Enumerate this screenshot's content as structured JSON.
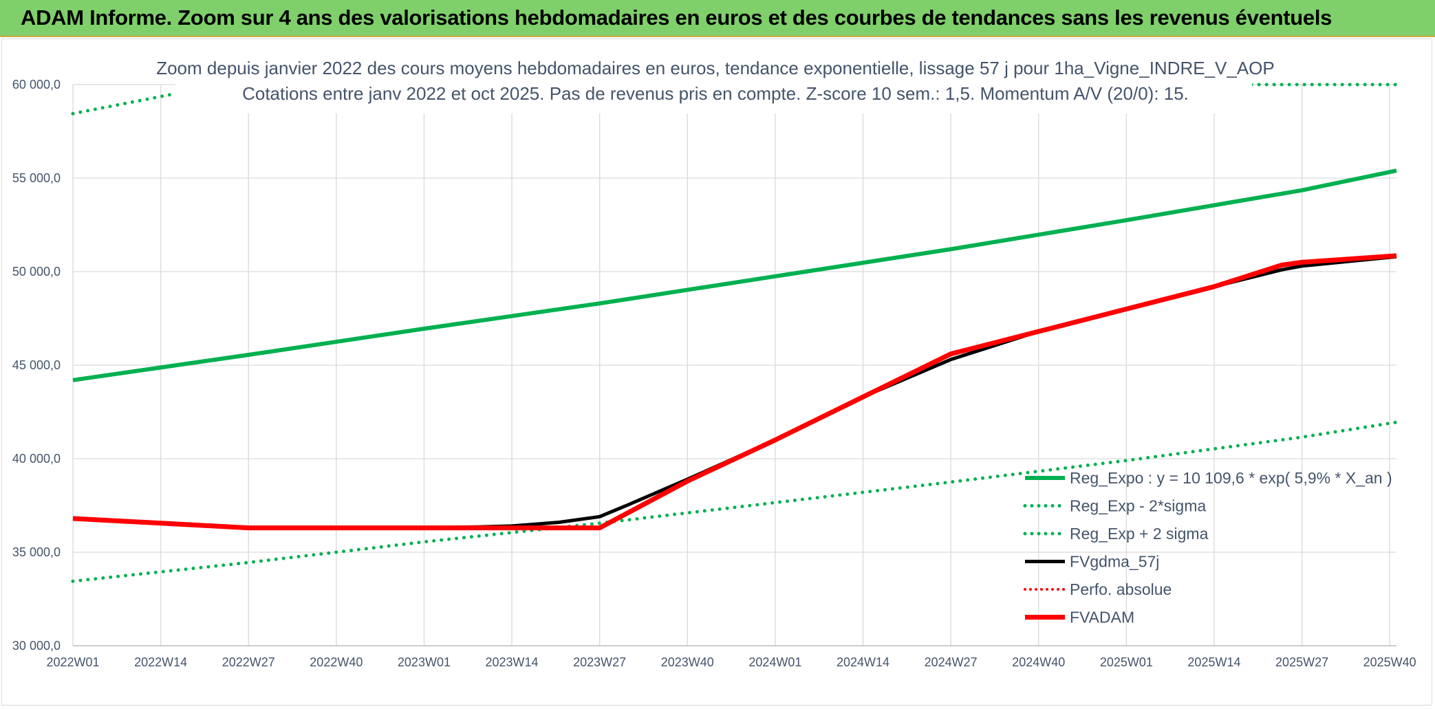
{
  "banner": {
    "title": "ADAM Informe. Zoom sur 4 ans des valorisations hebdomadaires en euros et des courbes de tendances sans les revenus éventuels"
  },
  "colors": {
    "banner_bg": "#7fcf6b",
    "green": "#00b050",
    "black": "#000000",
    "red": "#ff0000",
    "grid": "#d9d9d9",
    "text": "#44546a"
  },
  "chart_data": {
    "type": "line",
    "title_lines": [
      "Zoom depuis janvier 2022 des cours moyens hebdomadaires en euros, tendance exponentielle, lissage 57 j pour 1ha_Vigne_INDRE_V_AOP",
      "Cotations entre janv 2022 et oct 2025. Pas de revenus pris en compte. Z-score 10 sem.: 1,5. Momentum A/V (20/0): 15."
    ],
    "ylim": [
      30000,
      60000
    ],
    "yticks": [
      30000,
      35000,
      40000,
      45000,
      50000,
      55000,
      60000
    ],
    "ytick_labels": [
      "30 000,0",
      "35 000,0",
      "40 000,0",
      "45 000,0",
      "50 000,0",
      "55 000,0",
      "60 000,0"
    ],
    "x_range_weeks": [
      0,
      196
    ],
    "xtick_positions": [
      0,
      13,
      26,
      39,
      52,
      65,
      78,
      91,
      104,
      117,
      130,
      143,
      156,
      169,
      182,
      195
    ],
    "xtick_labels": [
      "2022W01",
      "2022W14",
      "2022W27",
      "2022W40",
      "2023W01",
      "2023W14",
      "2023W27",
      "2023W40",
      "2024W01",
      "2024W14",
      "2024W27",
      "2024W40",
      "2025W01",
      "2025W14",
      "2025W27",
      "2025W40"
    ],
    "series": [
      {
        "name": "Reg_Expo : y = 10 109,6 * exp( 5,9% *  X_an )",
        "style": "solid-green-thick",
        "x": [
          0,
          26,
          52,
          78,
          104,
          130,
          156,
          182,
          196
        ],
        "y": [
          44200,
          45550,
          46950,
          48300,
          49750,
          51200,
          52750,
          54350,
          55400
        ]
      },
      {
        "name": "Reg_Exp - 2*sigma",
        "style": "dotted-green",
        "x": [
          0,
          26,
          52,
          78,
          104,
          130,
          156,
          182,
          196
        ],
        "y": [
          33450,
          34450,
          35550,
          36550,
          37650,
          38750,
          39900,
          41150,
          41950
        ]
      },
      {
        "name": "Reg_Exp + 2 sigma",
        "style": "dotted-green",
        "x": [
          0,
          15,
          175,
          196
        ],
        "y": [
          58450,
          59500,
          60000,
          60000
        ]
      },
      {
        "name": "FVgdma_57j",
        "style": "solid-black",
        "x": [
          0,
          13,
          26,
          39,
          52,
          60,
          65,
          72,
          78,
          82,
          91,
          104,
          117,
          130,
          143,
          156,
          169,
          179,
          182,
          196
        ],
        "y": [
          36800,
          36550,
          36300,
          36300,
          36300,
          36350,
          36400,
          36600,
          36900,
          37500,
          38900,
          41000,
          43300,
          45300,
          46800,
          48000,
          49200,
          50100,
          50300,
          50800
        ]
      },
      {
        "name": "Perfo. absolue",
        "style": "dotted-red",
        "x": [],
        "y": []
      },
      {
        "name": "FVADAM",
        "style": "solid-red-thick",
        "x": [
          0,
          13,
          26,
          39,
          52,
          65,
          78,
          91,
          104,
          117,
          130,
          143,
          156,
          169,
          179,
          182,
          196
        ],
        "y": [
          36800,
          36550,
          36300,
          36300,
          36300,
          36300,
          36300,
          38800,
          41000,
          43300,
          45600,
          46800,
          48000,
          49200,
          50350,
          50500,
          50850
        ]
      }
    ],
    "legend_position": "bottom-right"
  }
}
